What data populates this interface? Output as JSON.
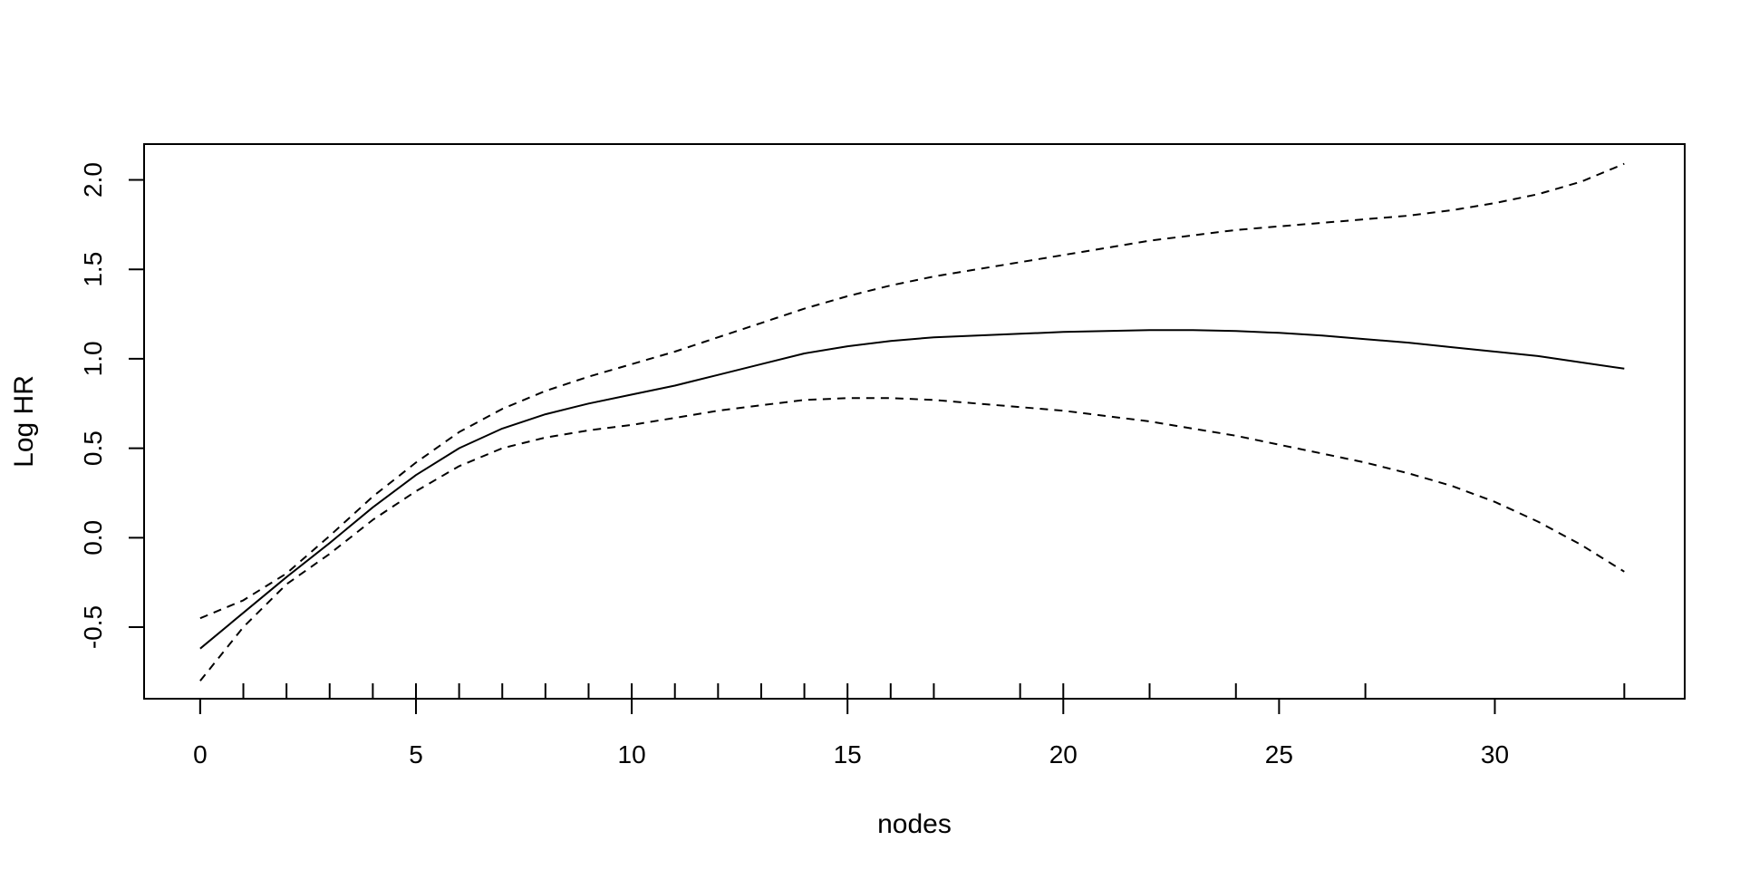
{
  "chart_data": {
    "type": "line",
    "title": "",
    "xlabel": "nodes",
    "ylabel": "Log HR",
    "xlim": [
      -1.3,
      34.4
    ],
    "ylim": [
      -0.9,
      2.2
    ],
    "x_ticks": [
      0,
      5,
      10,
      15,
      20,
      25,
      30
    ],
    "x_tick_labels": [
      "0",
      "5",
      "10",
      "15",
      "20",
      "25",
      "30"
    ],
    "y_ticks": [
      -0.5,
      0.0,
      0.5,
      1.0,
      1.5,
      2.0
    ],
    "y_tick_labels": [
      "-0.5",
      "0.0",
      "0.5",
      "1.0",
      "1.5",
      "2.0"
    ],
    "rug": [
      1,
      2,
      3,
      4,
      5,
      6,
      7,
      8,
      9,
      10,
      11,
      12,
      13,
      14,
      15,
      16,
      17,
      19,
      20,
      22,
      24,
      27,
      33
    ],
    "grid": false,
    "legend": "none",
    "series": [
      {
        "role": "estimate",
        "style": "solid",
        "x": [
          0,
          1,
          2,
          3,
          4,
          5,
          6,
          7,
          8,
          9,
          10,
          11,
          12,
          13,
          14,
          15,
          16,
          17,
          18,
          19,
          20,
          21,
          22,
          23,
          24,
          25,
          26,
          27,
          28,
          29,
          30,
          31,
          32,
          33
        ],
        "y": [
          -0.62,
          -0.42,
          -0.22,
          -0.03,
          0.17,
          0.35,
          0.5,
          0.61,
          0.69,
          0.75,
          0.8,
          0.85,
          0.91,
          0.97,
          1.03,
          1.07,
          1.1,
          1.12,
          1.13,
          1.14,
          1.15,
          1.155,
          1.16,
          1.16,
          1.155,
          1.145,
          1.13,
          1.11,
          1.09,
          1.065,
          1.04,
          1.015,
          0.98,
          0.945
        ]
      },
      {
        "role": "upper",
        "style": "dashed",
        "x": [
          0,
          1,
          2,
          3,
          4,
          5,
          6,
          7,
          8,
          9,
          10,
          11,
          12,
          13,
          14,
          15,
          16,
          17,
          18,
          19,
          20,
          21,
          22,
          23,
          24,
          25,
          26,
          27,
          28,
          29,
          30,
          31,
          32,
          33
        ],
        "y": [
          -0.45,
          -0.35,
          -0.2,
          0.01,
          0.23,
          0.42,
          0.59,
          0.72,
          0.82,
          0.9,
          0.97,
          1.04,
          1.12,
          1.2,
          1.28,
          1.35,
          1.41,
          1.46,
          1.5,
          1.54,
          1.58,
          1.62,
          1.66,
          1.69,
          1.72,
          1.74,
          1.76,
          1.78,
          1.8,
          1.83,
          1.87,
          1.92,
          1.99,
          2.09
        ]
      },
      {
        "role": "lower",
        "style": "dashed",
        "x": [
          0,
          1,
          2,
          3,
          4,
          5,
          6,
          7,
          8,
          9,
          10,
          11,
          12,
          13,
          14,
          15,
          16,
          17,
          18,
          19,
          20,
          21,
          22,
          23,
          24,
          25,
          26,
          27,
          28,
          29,
          30,
          31,
          32,
          33
        ],
        "y": [
          -0.8,
          -0.5,
          -0.26,
          -0.09,
          0.1,
          0.26,
          0.4,
          0.5,
          0.56,
          0.6,
          0.63,
          0.67,
          0.71,
          0.74,
          0.77,
          0.78,
          0.78,
          0.77,
          0.75,
          0.73,
          0.71,
          0.68,
          0.65,
          0.61,
          0.57,
          0.52,
          0.47,
          0.42,
          0.36,
          0.29,
          0.2,
          0.09,
          -0.04,
          -0.19
        ]
      }
    ]
  }
}
